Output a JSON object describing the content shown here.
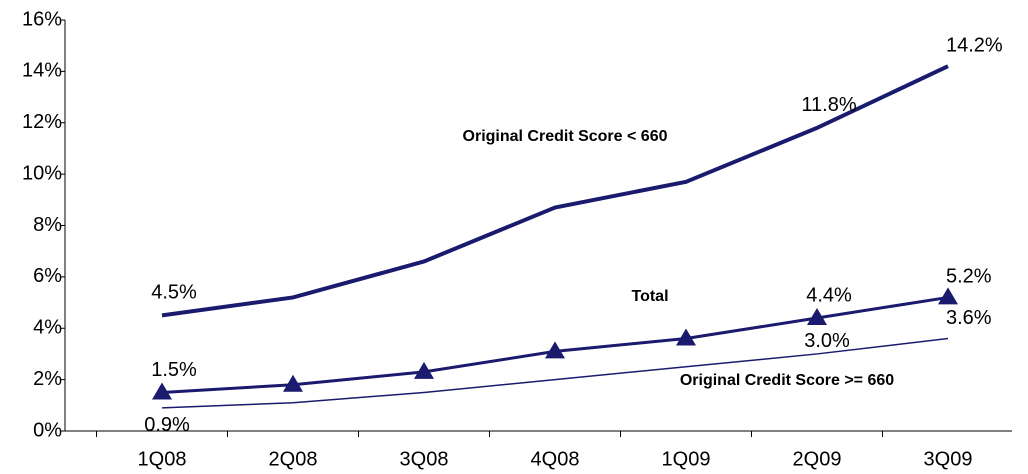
{
  "chart_data": {
    "type": "line",
    "categories": [
      "1Q08",
      "2Q08",
      "3Q08",
      "4Q08",
      "1Q09",
      "2Q09",
      "3Q09"
    ],
    "series": [
      {
        "name": "Original Credit Score < 660",
        "color": "#1a1a6e",
        "values": [
          4.5,
          5.2,
          6.6,
          8.7,
          9.7,
          11.8,
          14.2
        ],
        "value_labels": [
          "4.5%",
          null,
          null,
          null,
          null,
          "11.8%",
          "14.2%"
        ]
      },
      {
        "name": "Total",
        "color": "#1a1a6e",
        "marker": "triangle",
        "values": [
          1.5,
          1.8,
          2.3,
          3.1,
          3.6,
          4.4,
          5.2
        ],
        "value_labels": [
          "1.5%",
          null,
          null,
          null,
          null,
          "4.4%",
          "5.2%"
        ]
      },
      {
        "name": "Original Credit Score >= 660",
        "color": "#1a1a6e",
        "values": [
          0.9,
          1.1,
          1.5,
          2.0,
          2.5,
          3.0,
          3.6
        ],
        "value_labels": [
          "0.9%",
          null,
          null,
          null,
          null,
          "3.0%",
          "3.6%"
        ]
      }
    ],
    "ylim": [
      0,
      16
    ],
    "yticks": [
      {
        "value": 0,
        "label": "0%"
      },
      {
        "value": 2,
        "label": "2%"
      },
      {
        "value": 4,
        "label": "4%"
      },
      {
        "value": 6,
        "label": "6%"
      },
      {
        "value": 8,
        "label": "8%"
      },
      {
        "value": 10,
        "label": "10%"
      },
      {
        "value": 12,
        "label": "12%"
      },
      {
        "value": 14,
        "label": "14%"
      },
      {
        "value": 16,
        "label": "16%"
      }
    ],
    "grid": false
  }
}
